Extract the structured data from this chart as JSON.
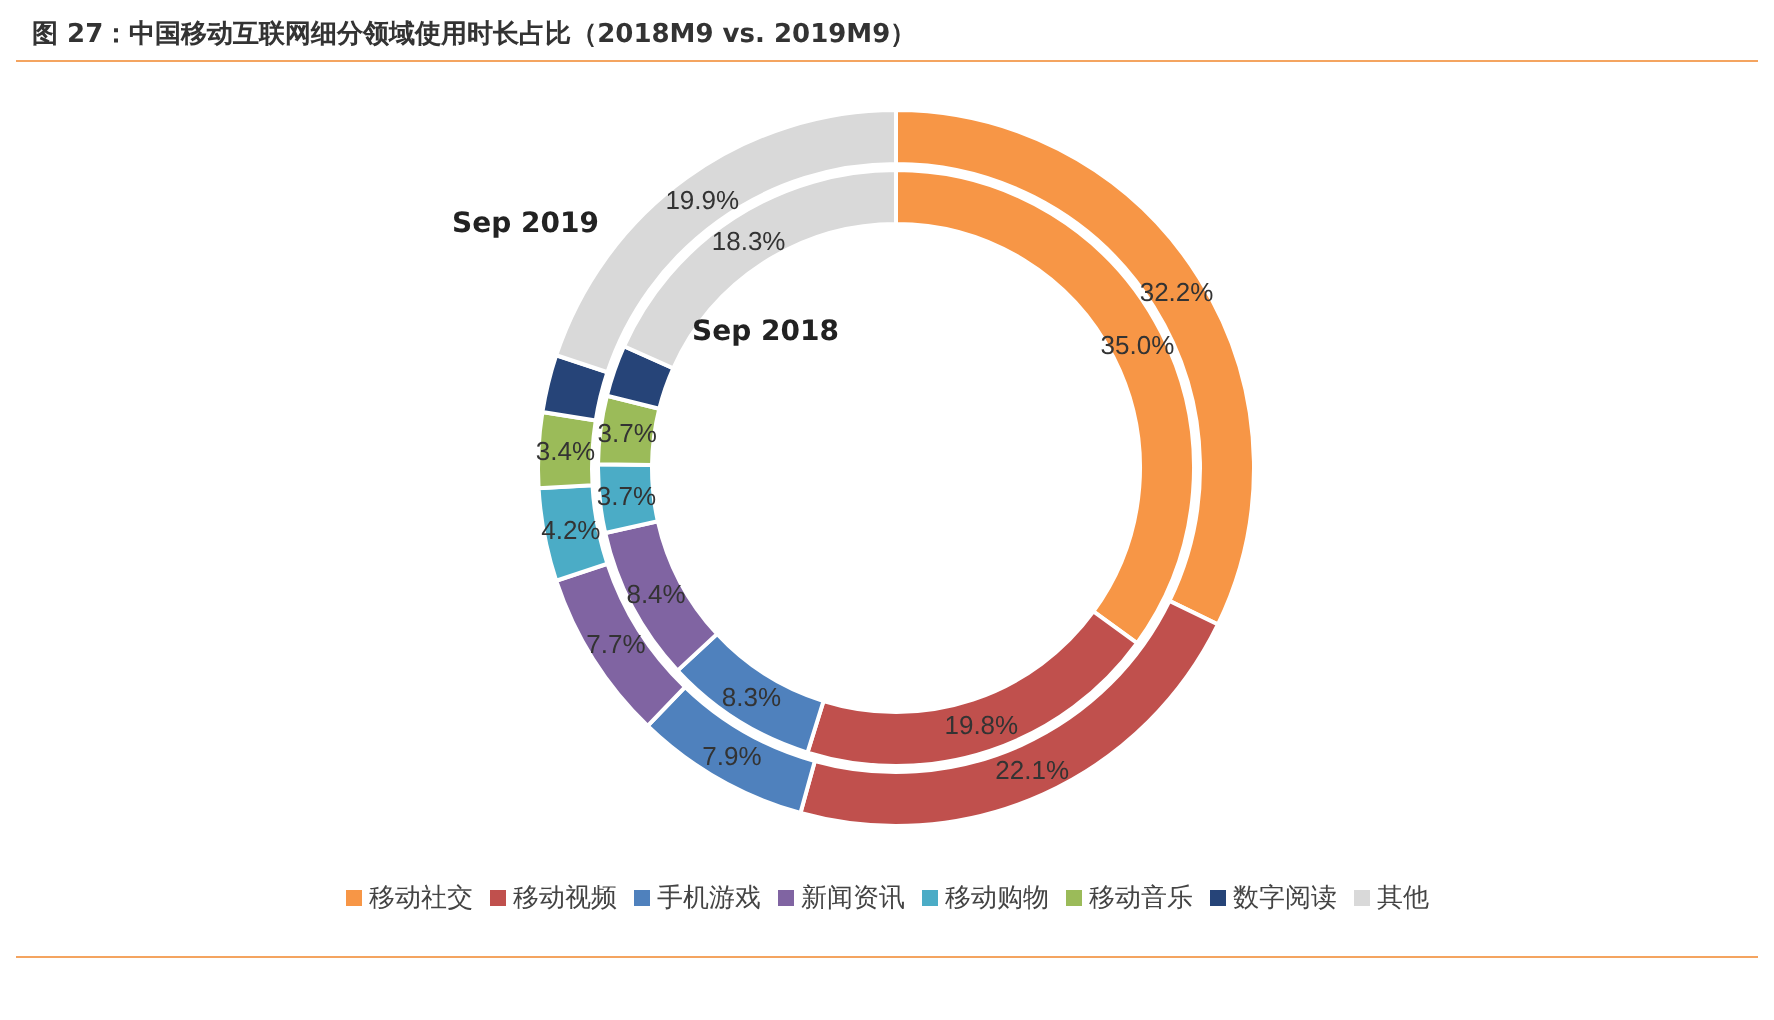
{
  "chart_data": {
    "type": "donut",
    "title": "图 27：中国移动互联网细分领域使用时长占比（2018M9 vs. 2019M9）",
    "categories": [
      "移动社交",
      "移动视频",
      "手机游戏",
      "新闻资讯",
      "移动购物",
      "移动音乐",
      "数字阅读",
      "其他"
    ],
    "colors": [
      "#f79646",
      "#c0504d",
      "#4f81bd",
      "#8064a2",
      "#4bacc6",
      "#9bbb59",
      "#264478",
      "#d9d9d9"
    ],
    "series": [
      {
        "name": "Sep 2019",
        "values": [
          32.2,
          22.1,
          7.9,
          7.7,
          4.2,
          3.4,
          2.6,
          19.9
        ],
        "value_labels": [
          "32.2%",
          "22.1%",
          "7.9%",
          "7.7%",
          "4.2%",
          "3.4%",
          null,
          "19.9%"
        ]
      },
      {
        "name": "Sep 2018",
        "values": [
          35.0,
          19.8,
          8.3,
          8.4,
          3.7,
          3.7,
          2.8,
          18.3
        ],
        "value_labels": [
          "35.0%",
          "19.8%",
          "8.3%",
          "8.4%",
          "3.7%",
          "3.7%",
          null,
          "18.3%"
        ]
      }
    ],
    "legend": "bottom"
  }
}
